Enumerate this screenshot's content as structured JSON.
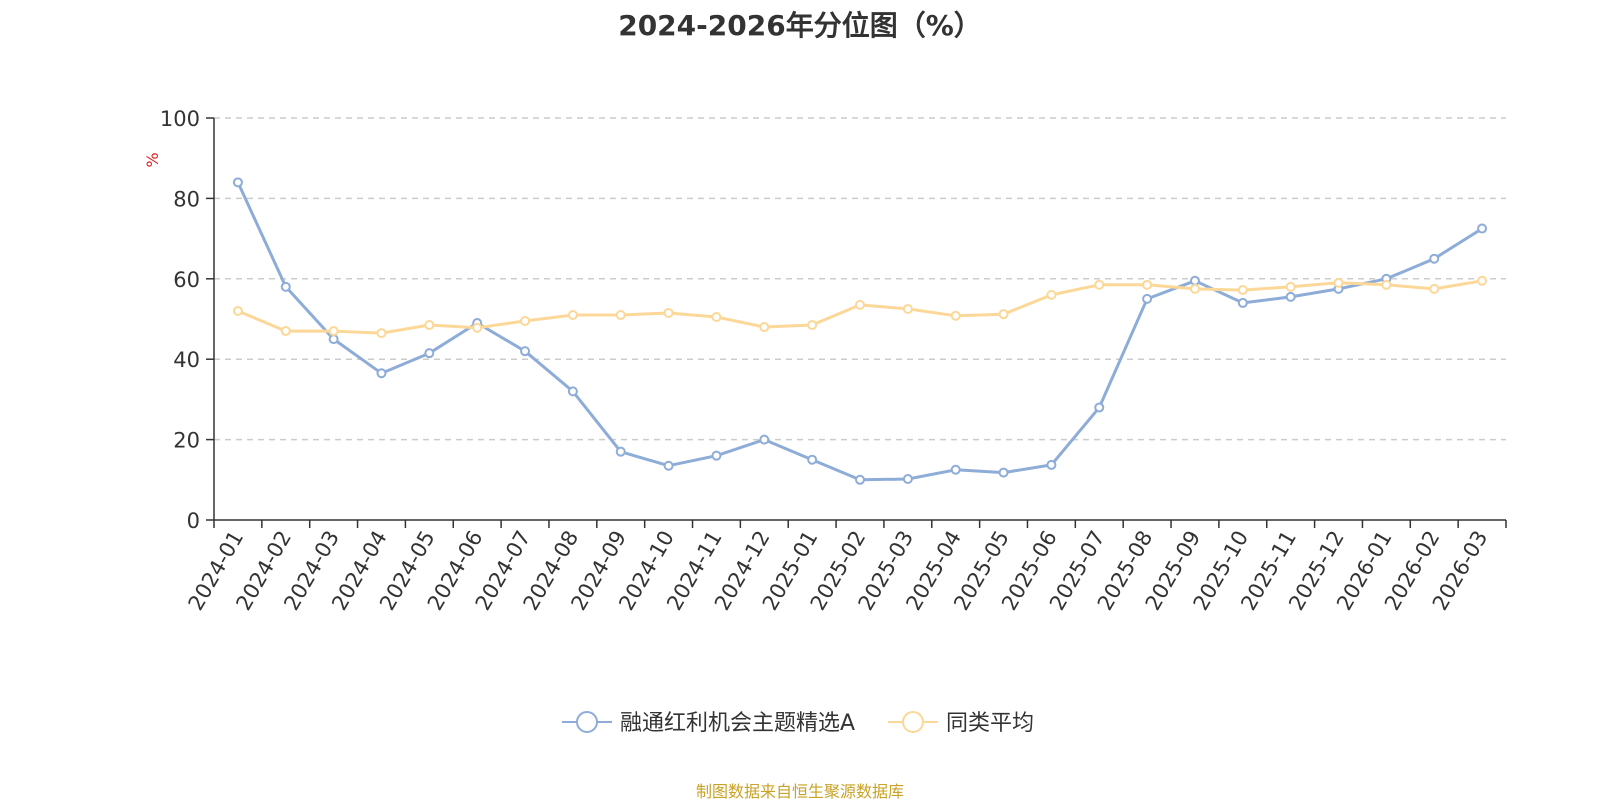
{
  "colors": {
    "series_1": "#8eacd8",
    "series_2": "#fcd898",
    "axis": "#333333",
    "grid": "#cccccc",
    "unit": "#e02020",
    "source": "#c9a227"
  },
  "chart_data": {
    "type": "line",
    "title": "2024-2026年分位图（%）",
    "ylabel": "%",
    "ylim": [
      0,
      100
    ],
    "yticks": [
      0,
      20,
      40,
      60,
      80,
      100
    ],
    "grid": true,
    "grid_style": "dashed-horizontal",
    "legend_position": "bottom-center",
    "x": [
      "2024-01",
      "2024-02",
      "2024-03",
      "2024-04",
      "2024-05",
      "2024-06",
      "2024-07",
      "2024-08",
      "2024-09",
      "2024-10",
      "2024-11",
      "2024-12",
      "2025-01",
      "2025-02",
      "2025-03",
      "2025-04",
      "2025-05",
      "2025-06",
      "2025-07",
      "2025-08",
      "2025-09",
      "2025-10",
      "2025-11",
      "2025-12",
      "2026-01",
      "2026-02",
      "2026-03"
    ],
    "series": [
      {
        "name": "融通红利机会主题精选A",
        "values": [
          84,
          58,
          45,
          36.5,
          41.5,
          49,
          42,
          32,
          17,
          13.5,
          16,
          20,
          15,
          10,
          10.2,
          12.5,
          11.8,
          13.7,
          28,
          55,
          59.5,
          54,
          55.5,
          57.5,
          60,
          65,
          72.5
        ]
      },
      {
        "name": "同类平均",
        "values": [
          52,
          47,
          47,
          46.5,
          48.5,
          47.8,
          49.5,
          51,
          51,
          51.5,
          50.5,
          48,
          48.5,
          53.5,
          52.5,
          50.8,
          51.2,
          56,
          58.5,
          58.5,
          57.5,
          57.2,
          58,
          59,
          58.5,
          57.5,
          59.5
        ]
      }
    ]
  },
  "footer": {
    "source": "制图数据来自恒生聚源数据库"
  }
}
